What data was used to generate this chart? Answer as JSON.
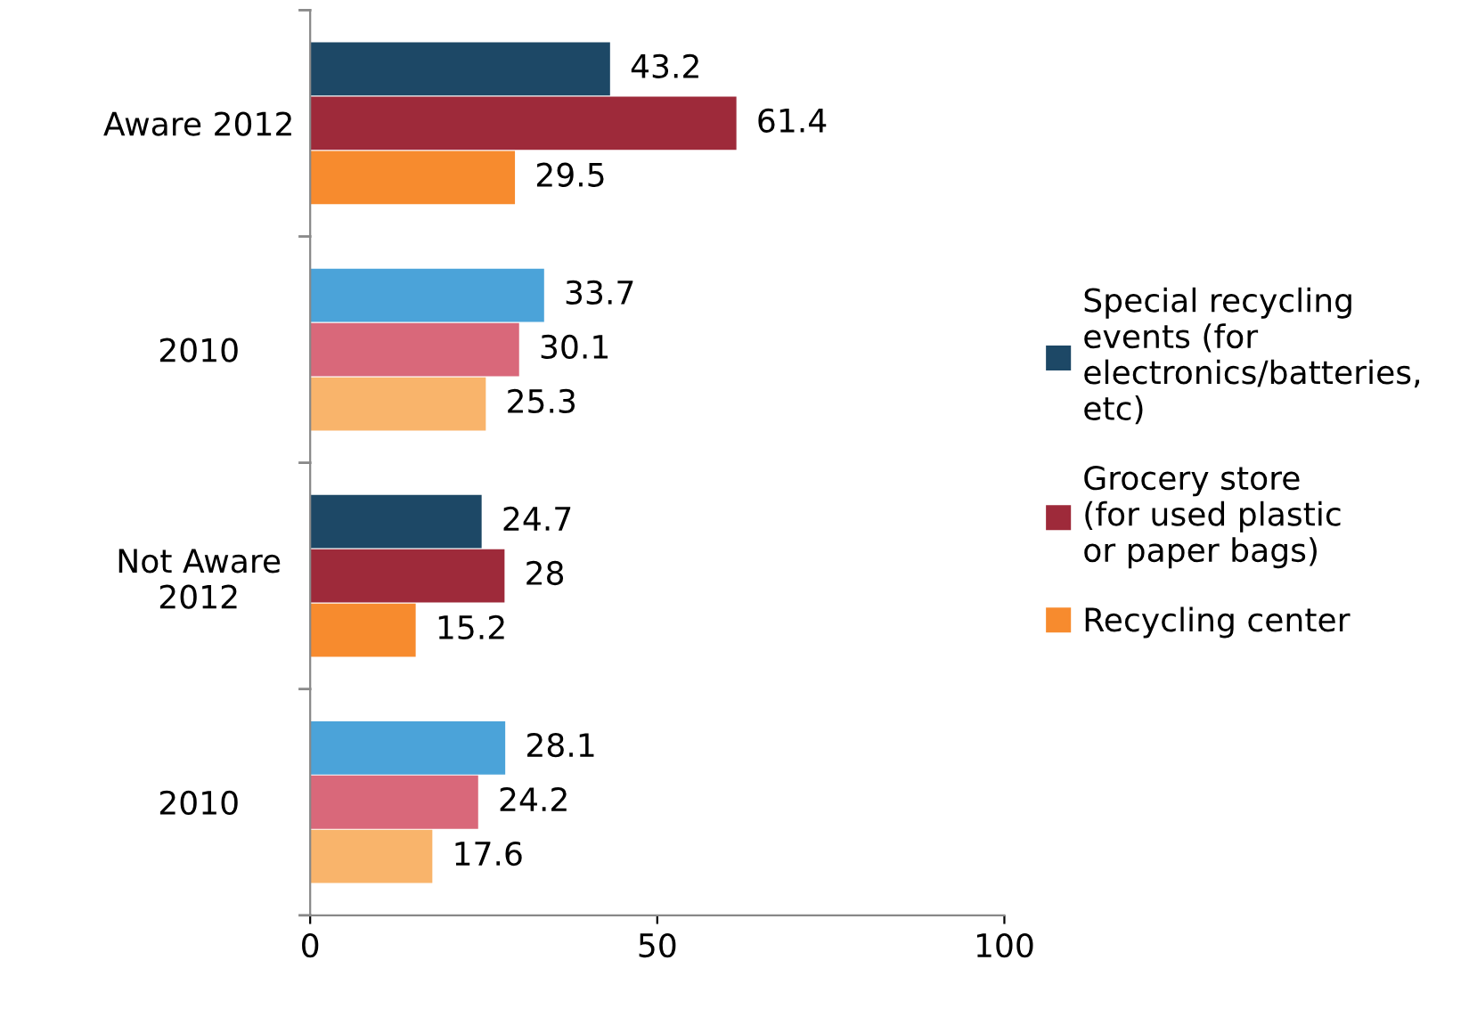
{
  "chart_data": {
    "type": "bar",
    "orientation": "horizontal",
    "categories": [
      "Aware 2012",
      "2010",
      "Not Aware\n2012",
      "2010"
    ],
    "series": [
      {
        "name": "Special recycling\nevents (for\nelectronics/batteries,\netc)",
        "color": "#1d4866",
        "colors": [
          "#1d4866",
          "#4ba3d9",
          "#1d4866",
          "#4ba3d9"
        ],
        "values": [
          43.2,
          33.7,
          24.7,
          28.1
        ]
      },
      {
        "name": "Grocery store\n(for used plastic\nor paper bags)",
        "color": "#9e2a3a",
        "colors": [
          "#9e2a3a",
          "#d9687a",
          "#9e2a3a",
          "#d9687a"
        ],
        "values": [
          61.4,
          30.1,
          28,
          24.2
        ]
      },
      {
        "name": "Recycling center",
        "color": "#f78b2e",
        "colors": [
          "#f78b2e",
          "#f9b46b",
          "#f78b2e",
          "#f9b46b"
        ],
        "values": [
          29.5,
          25.3,
          15.2,
          17.6
        ]
      }
    ],
    "xlim": [
      0,
      100
    ],
    "xticks": [
      0,
      50,
      100
    ],
    "data_labels": true,
    "legend": "right",
    "grid": false
  }
}
